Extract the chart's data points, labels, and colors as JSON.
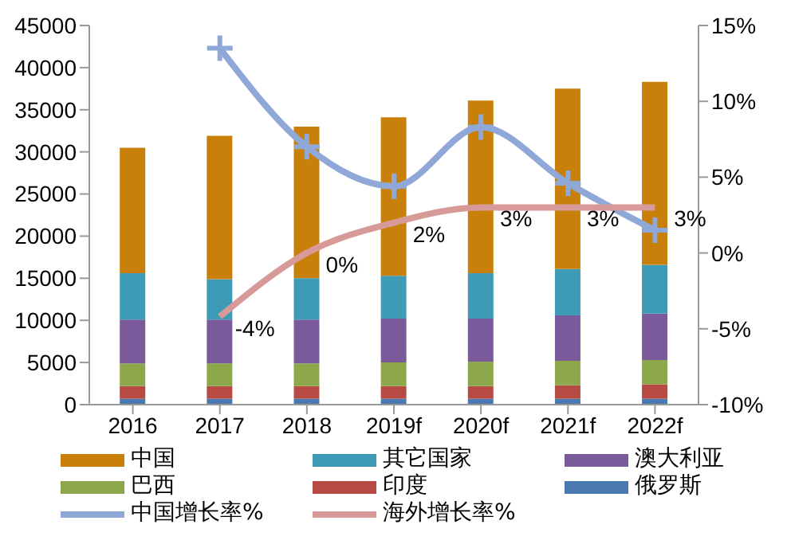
{
  "chart_data": {
    "type": "bar",
    "stacked": true,
    "categories": [
      "2016",
      "2017",
      "2018",
      "2019f",
      "2020f",
      "2021f",
      "2022f"
    ],
    "series": [
      {
        "name": "俄罗斯",
        "color": "#4a78b0",
        "values": [
          700,
          700,
          700,
          700,
          700,
          700,
          700
        ]
      },
      {
        "name": "印度",
        "color": "#b84a44",
        "values": [
          1500,
          1500,
          1500,
          1500,
          1500,
          1600,
          1700
        ]
      },
      {
        "name": "巴西",
        "color": "#8ca84a",
        "values": [
          2700,
          2700,
          2700,
          2800,
          2900,
          2900,
          2900
        ]
      },
      {
        "name": "澳大利亚",
        "color": "#7a5a9a",
        "values": [
          5200,
          5200,
          5200,
          5200,
          5100,
          5400,
          5500
        ]
      },
      {
        "name": "其它国家",
        "color": "#3d9bb5",
        "values": [
          5500,
          4800,
          4900,
          5100,
          5400,
          5500,
          5800
        ]
      },
      {
        "name": "中国",
        "color": "#c8800a",
        "values": [
          14900,
          17000,
          18000,
          18800,
          20500,
          21400,
          21700
        ]
      },
      {
        "name": "中国增长率%",
        "type": "line",
        "axis": "y2",
        "marker": "cross",
        "color": "#8fa8d8",
        "values": [
          null,
          13.5,
          7.0,
          4.4,
          8.3,
          4.6,
          1.5
        ]
      },
      {
        "name": "海外增长率%",
        "type": "line",
        "axis": "y2",
        "marker": "none",
        "color": "#d89a98",
        "values": [
          null,
          -4.2,
          0,
          2,
          3,
          3,
          3
        ],
        "value_labels": [
          null,
          "-4%",
          "0%",
          "2%",
          "3%",
          "3%",
          "3%"
        ]
      }
    ],
    "ylim": [
      0,
      45000
    ],
    "yticks": [
      0,
      5000,
      10000,
      15000,
      20000,
      25000,
      30000,
      35000,
      40000,
      45000
    ],
    "y2lim": [
      -10,
      15
    ],
    "y2ticks": [
      {
        "value": -10,
        "label": "-10%"
      },
      {
        "value": -5,
        "label": "-5%"
      },
      {
        "value": 0,
        "label": "0%"
      },
      {
        "value": 5,
        "label": "5%"
      },
      {
        "value": 10,
        "label": "10%"
      },
      {
        "value": 15,
        "label": "15%"
      }
    ],
    "grid": false,
    "legend": "bottom"
  }
}
